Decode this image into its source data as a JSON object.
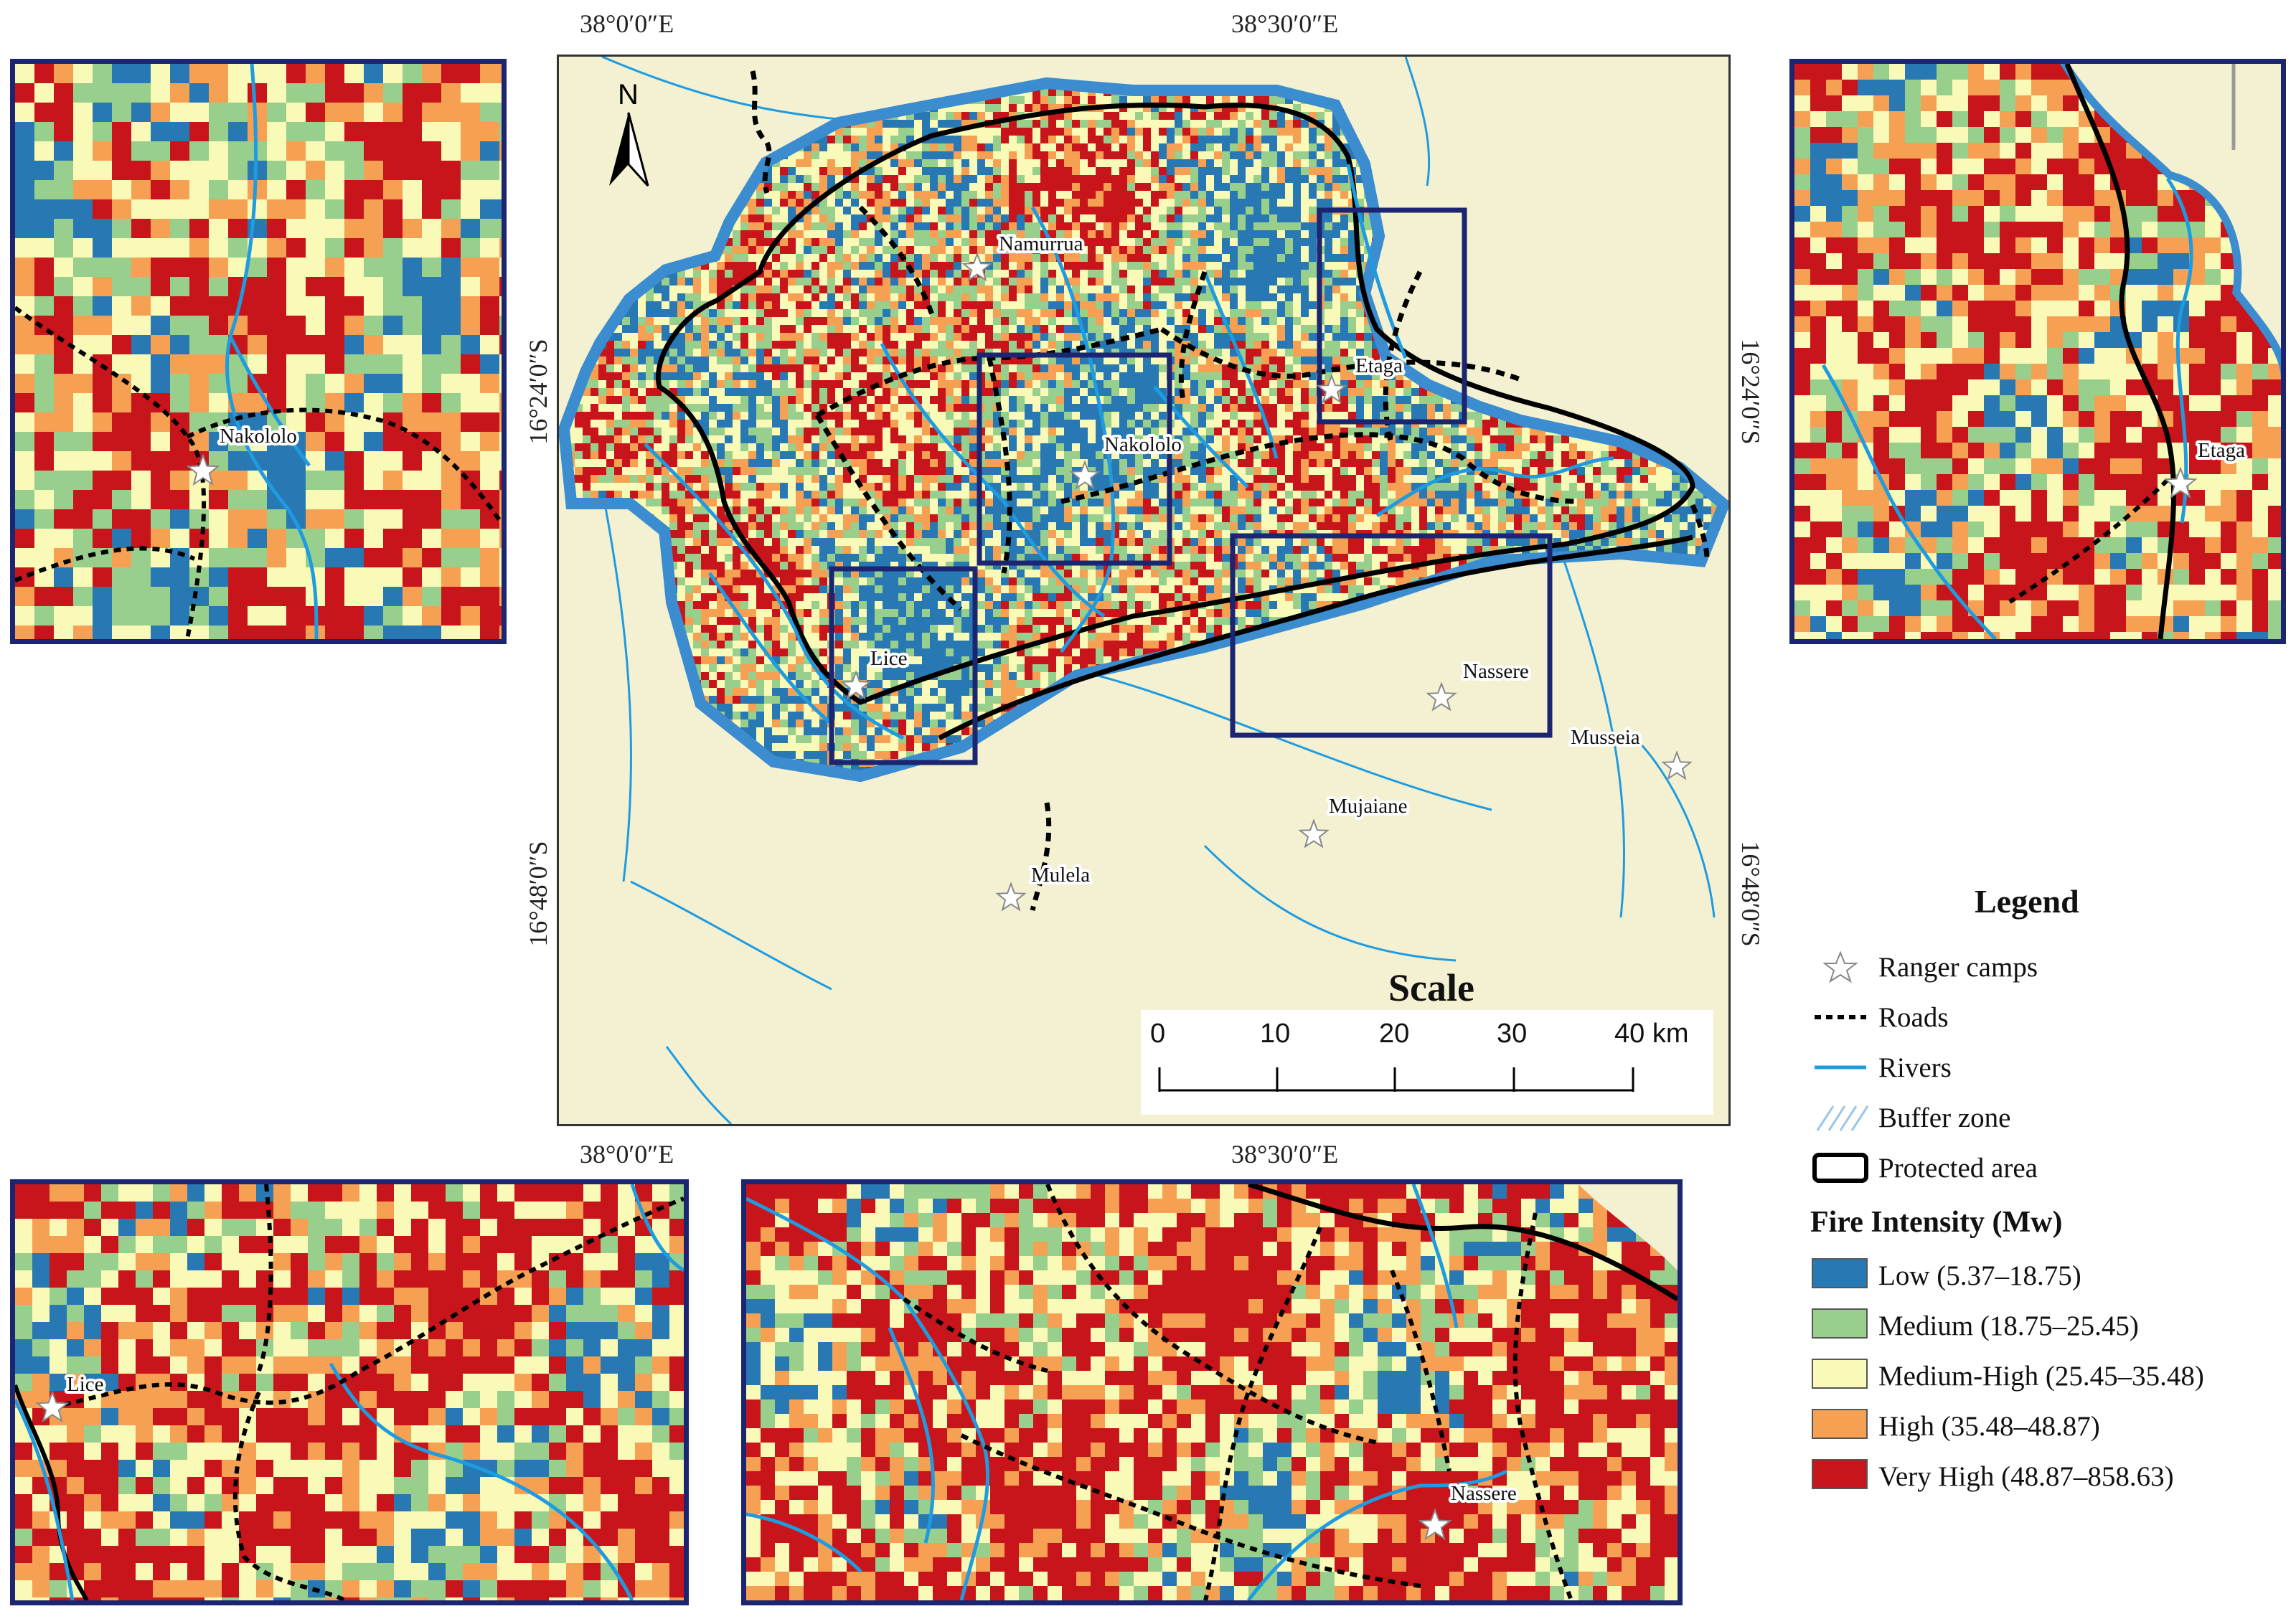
{
  "colors": {
    "low": "#2878b4",
    "medium": "#98cf8c",
    "medium_high": "#fafab8",
    "high": "#f6a053",
    "very_high": "#c8151c",
    "frame": "#1c2570",
    "river": "#1f9be0",
    "background": "#f3f1d2"
  },
  "coordinates": {
    "top_left": "38°0′0″E",
    "top_right": "38°30′0″E",
    "bottom_left": "38°0′0″E",
    "bottom_right": "38°30′0″E",
    "left_top": "16°24′0″S",
    "left_bottom": "16°48′0″S",
    "right_top": "16°24′0″S",
    "right_bottom": "16°48′0″S"
  },
  "north_arrow": {
    "label": "N",
    "icon": "north-arrow-icon"
  },
  "towns": {
    "namurrua": "Namurrua",
    "etaga": "Etaga",
    "nakololo": "Nakololo",
    "lice": "Lice",
    "nassere": "Nassere",
    "musseia": "Musseia",
    "mujaiane": "Mujaiane",
    "mulela": "Mulela"
  },
  "scale": {
    "title": "Scale",
    "ticks": [
      "0",
      "10",
      "20",
      "30",
      "40 km"
    ]
  },
  "legend": {
    "title": "Legend",
    "items": [
      {
        "label": "Ranger camps",
        "icon": "star-icon"
      },
      {
        "label": "Roads",
        "icon": "dotted-line-icon"
      },
      {
        "label": "Rivers",
        "icon": "river-line-icon"
      },
      {
        "label": "Buffer zone",
        "icon": "hatch-icon"
      },
      {
        "label": "Protected area",
        "icon": "outline-box-icon"
      }
    ],
    "fire_title": "Fire Intensity (Mw)",
    "classes": [
      {
        "label": "Low (5.37–18.75)"
      },
      {
        "label": "Medium (18.75–25.45)"
      },
      {
        "label": "Medium-High (25.45–35.48)"
      },
      {
        "label": "High (35.48–48.87)"
      },
      {
        "label": "Very High (48.87–858.63)"
      }
    ]
  }
}
